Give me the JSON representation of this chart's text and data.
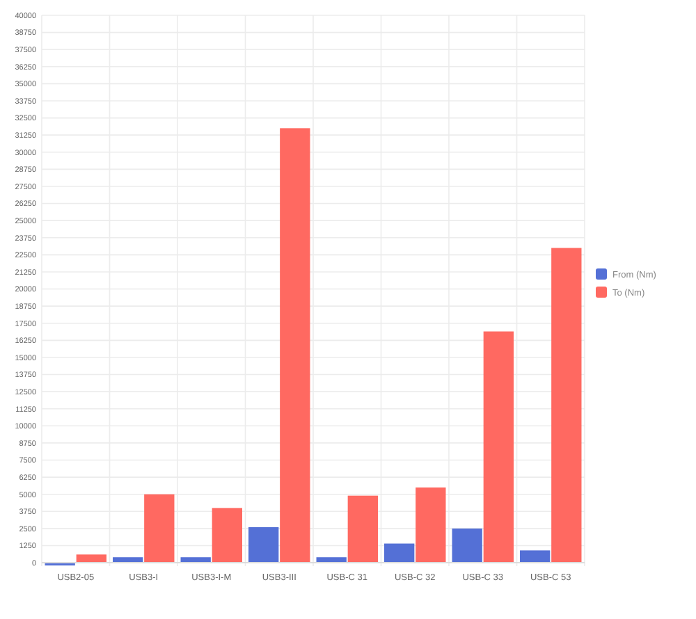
{
  "chart_data": {
    "type": "bar",
    "categories": [
      "USB2-05",
      "USB3-I",
      "USB3-I-M",
      "USB3-III",
      "USB-C 31",
      "USB-C 32",
      "USB-C 33",
      "USB-C 53"
    ],
    "series": [
      {
        "name": "From (Nm)",
        "color": "#5470d6",
        "values": [
          -200,
          400,
          400,
          2600,
          400,
          1400,
          2500,
          900
        ]
      },
      {
        "name": "To (Nm)",
        "color": "#ff6961",
        "values": [
          600,
          5000,
          4000,
          31750,
          4900,
          5500,
          16900,
          23000
        ]
      }
    ],
    "ylim": [
      -250,
      40000
    ],
    "yticks": [
      0,
      1250,
      2500,
      3750,
      5000,
      6250,
      7500,
      8750,
      10000,
      11250,
      12500,
      13750,
      15000,
      16250,
      17500,
      18750,
      20000,
      21250,
      22500,
      23750,
      25000,
      26250,
      27500,
      28750,
      30000,
      31250,
      32500,
      33750,
      35000,
      36250,
      37500,
      38750,
      40000
    ],
    "grid": true,
    "legend": "right"
  }
}
